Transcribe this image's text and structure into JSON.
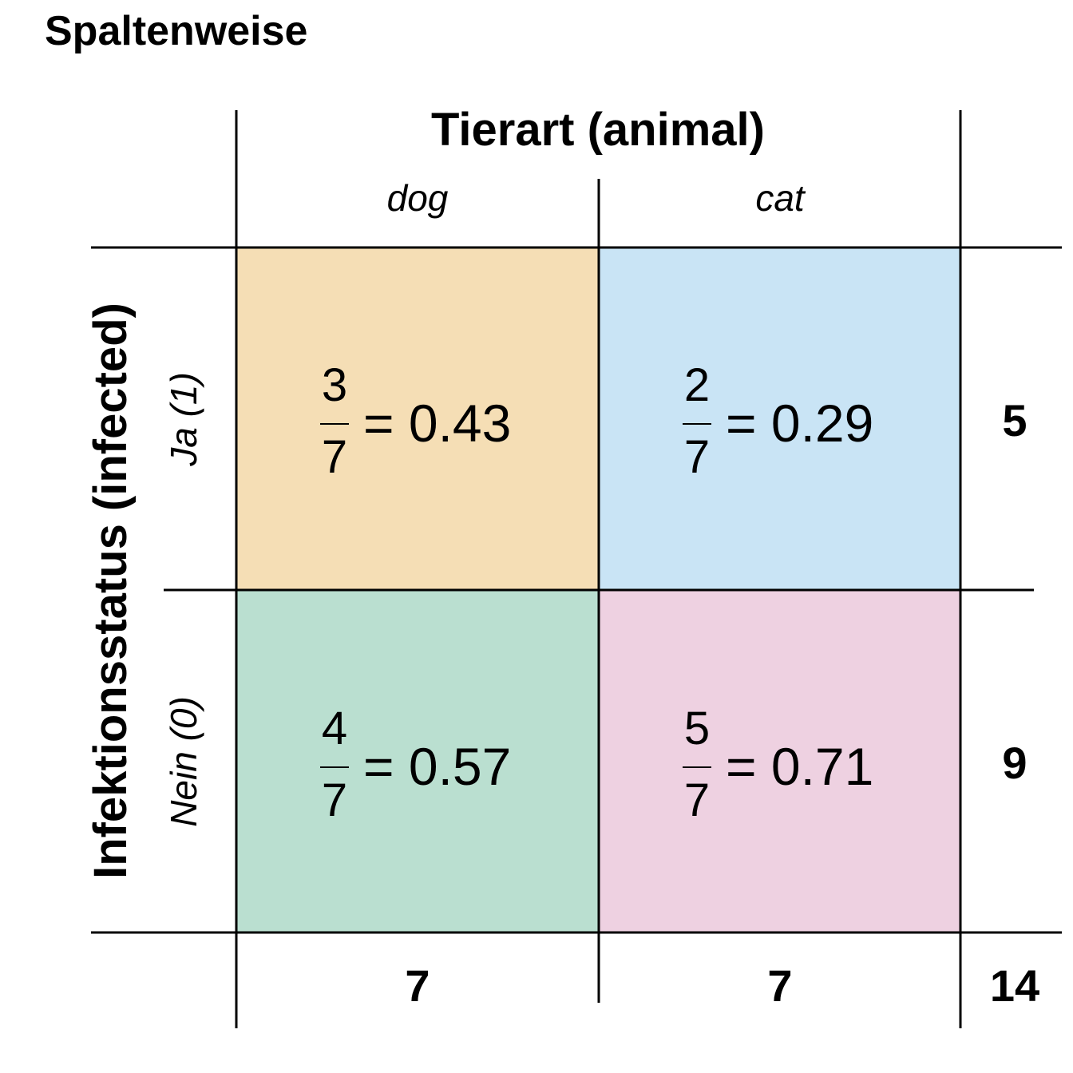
{
  "title": "Spaltenweise",
  "column_variable": "Tierart (animal)",
  "row_variable": "Infektionsstatus (infected)",
  "columns": [
    {
      "label": "dog",
      "total": "7"
    },
    {
      "label": "cat",
      "total": "7"
    }
  ],
  "rows": [
    {
      "label": "Ja (1)",
      "total": "5"
    },
    {
      "label": "Nein (0)",
      "total": "9"
    }
  ],
  "grand_total": "14",
  "cells": [
    [
      {
        "numerator": "3",
        "denominator": "7",
        "result": "= 0.43",
        "color": "#f5deb5"
      },
      {
        "numerator": "2",
        "denominator": "7",
        "result": "= 0.29",
        "color": "#c9e4f5"
      }
    ],
    [
      {
        "numerator": "4",
        "denominator": "7",
        "result": "= 0.57",
        "color": "#badfd0"
      },
      {
        "numerator": "5",
        "denominator": "7",
        "result": "= 0.71",
        "color": "#eed1e1"
      }
    ]
  ]
}
